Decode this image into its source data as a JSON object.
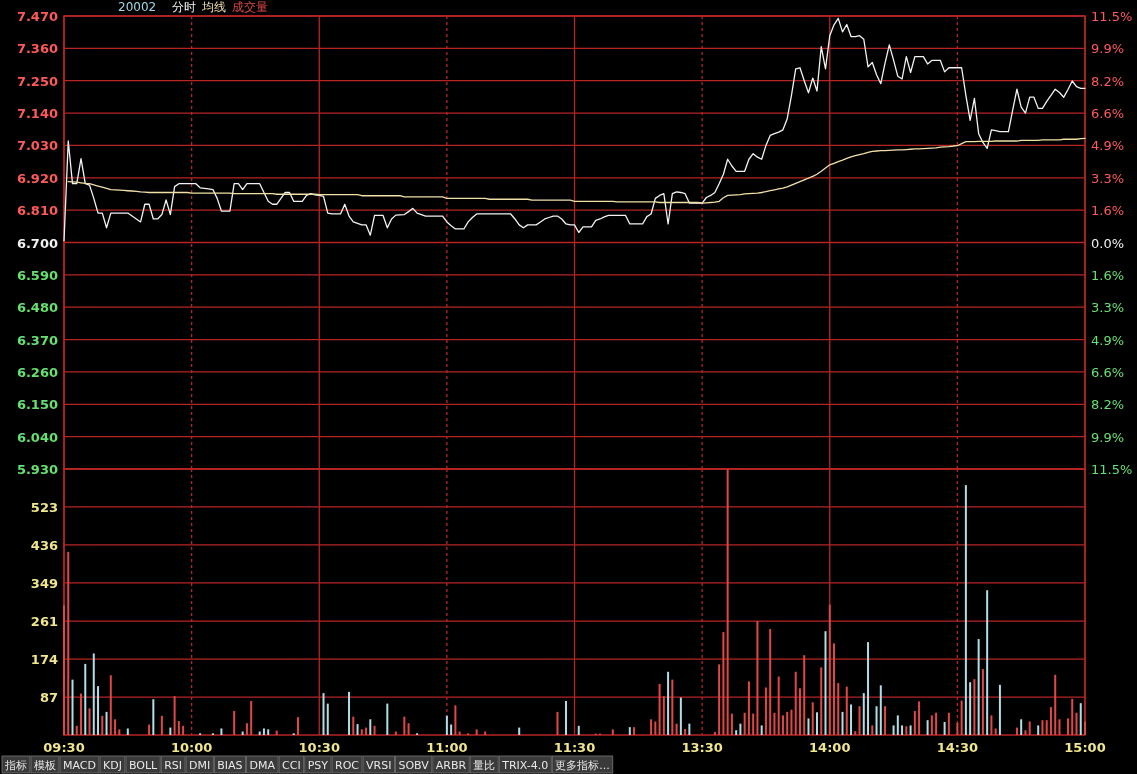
{
  "chart_data": [
    {
      "type": "line",
      "title": "20002",
      "legend": "top left",
      "grid": true,
      "tick_labels": "y",
      "categories": [
        null,
        null,
        null,
        null,
        null,
        null,
        null,
        null,
        null,
        null,
        null,
        null,
        null,
        null,
        null,
        null,
        null,
        null,
        null,
        null,
        null,
        null,
        null,
        null,
        null,
        null,
        null,
        null,
        null,
        null,
        null,
        null,
        null,
        null,
        null,
        null,
        null,
        null,
        null,
        null,
        null,
        null,
        null,
        null,
        null,
        null,
        null,
        null,
        null,
        null,
        null,
        null,
        null,
        null,
        null,
        null,
        null,
        null,
        null,
        null,
        null,
        null,
        null,
        null,
        null,
        null,
        null,
        null,
        null,
        null,
        null,
        null,
        null,
        null,
        null,
        null,
        null,
        null,
        null,
        null,
        null,
        null,
        null,
        null,
        null,
        null,
        null,
        null,
        null,
        null,
        null,
        null,
        null,
        null,
        null,
        null,
        null,
        null,
        null,
        null,
        null,
        null,
        null,
        null,
        null,
        null,
        null,
        null,
        null,
        null,
        null,
        null,
        null,
        null,
        null,
        null,
        null,
        null,
        null,
        null,
        null,
        null,
        null,
        null,
        null,
        null,
        null,
        null,
        null,
        null,
        null,
        null,
        null,
        null,
        null,
        null,
        null,
        null,
        null,
        null,
        null,
        null,
        null,
        null,
        null,
        null,
        null,
        null,
        null,
        null,
        null,
        null,
        null,
        null,
        null,
        null,
        null,
        null,
        null,
        null,
        null,
        null,
        null,
        null,
        null,
        null,
        null,
        null,
        null,
        null,
        null,
        null,
        null,
        null,
        null,
        null,
        null,
        null,
        null,
        null,
        null,
        null,
        null,
        null,
        null,
        null,
        null,
        null,
        null,
        null,
        null,
        null,
        null,
        null,
        null,
        null,
        null,
        null,
        null,
        null,
        null,
        null,
        null,
        null,
        null,
        null,
        null,
        null,
        null,
        null,
        null,
        null,
        null,
        null,
        null,
        null,
        null,
        null,
        null,
        null,
        null,
        null,
        null,
        null,
        null,
        null,
        null,
        null,
        null,
        null,
        null,
        null,
        null,
        null,
        null,
        null,
        null,
        null,
        null,
        null,
        null
      ],
      "ylim": [
        5.93,
        7.47
      ],
      "yticks": [
        {
          "value": 7.47,
          "label": "7.470"
        },
        {
          "value": 7.36,
          "label": "7.360"
        },
        {
          "value": 7.25,
          "label": "7.250"
        },
        {
          "value": 7.14,
          "label": "7.140"
        },
        {
          "value": 7.03,
          "label": "7.030"
        },
        {
          "value": 6.92,
          "label": "6.920"
        },
        {
          "value": 6.81,
          "label": "6.810"
        },
        {
          "value": 6.7,
          "label": "6.700"
        },
        {
          "value": 6.59,
          "label": "6.590"
        },
        {
          "value": 6.48,
          "label": "6.480"
        },
        {
          "value": 6.37,
          "label": "6.370"
        },
        {
          "value": 6.26,
          "label": "6.260"
        },
        {
          "value": 6.15,
          "label": "6.150"
        },
        {
          "value": 6.04,
          "label": "6.040"
        },
        {
          "value": 5.93,
          "label": "5.930"
        }
      ],
      "y2lim": [
        -11.49,
        11.49
      ],
      "y2ticks": [
        {
          "value": 11.49,
          "label": "11.5%"
        },
        {
          "value": 9.85,
          "label": "9.9%"
        },
        {
          "value": 8.21,
          "label": "8.2%"
        },
        {
          "value": 6.57,
          "label": "6.6%"
        },
        {
          "value": 4.93,
          "label": "4.9%"
        },
        {
          "value": 3.28,
          "label": "3.3%"
        },
        {
          "value": 1.64,
          "label": "1.6%"
        },
        {
          "value": 0,
          "label": "0.0%"
        },
        {
          "value": -1.64,
          "label": "1.6%"
        },
        {
          "value": -3.28,
          "label": "3.3%"
        },
        {
          "value": -4.93,
          "label": "4.9%"
        },
        {
          "value": -6.57,
          "label": "6.6%"
        },
        {
          "value": -8.21,
          "label": "8.2%"
        },
        {
          "value": -9.85,
          "label": "9.9%"
        },
        {
          "value": -11.49,
          "label": "11.5%"
        }
      ],
      "series": [
        {
          "name": "分时",
          "color": "#f2f2f2",
          "values": [
            6.706,
            7.045,
            6.9,
            6.9,
            6.985,
            6.9,
            6.895,
            6.85,
            6.8,
            6.8,
            6.75,
            6.8,
            6.8,
            6.8,
            6.8,
            6.8,
            6.79,
            6.78,
            6.77,
            6.83,
            6.83,
            6.78,
            6.78,
            6.795,
            6.845,
            6.795,
            6.89,
            6.9,
            6.9,
            6.9,
            6.9,
            6.9,
            6.886,
            6.884,
            6.882,
            6.88,
            6.85,
            6.807,
            6.807,
            6.807,
            6.9,
            6.9,
            6.88,
            6.9,
            6.9,
            6.9,
            6.9,
            6.87,
            6.84,
            6.83,
            6.83,
            6.85,
            6.87,
            6.87,
            6.84,
            6.84,
            6.84,
            6.86,
            6.866,
            6.862,
            6.86,
            6.857,
            6.8,
            6.797,
            6.797,
            6.797,
            6.83,
            6.79,
            6.77,
            6.765,
            6.76,
            6.76,
            6.725,
            6.792,
            6.792,
            6.792,
            6.75,
            6.78,
            6.793,
            6.794,
            6.795,
            6.805,
            6.816,
            6.8,
            6.795,
            6.79,
            6.79,
            6.79,
            6.79,
            6.79,
            6.77,
            6.757,
            6.746,
            6.746,
            6.746,
            6.77,
            6.785,
            6.797,
            6.797,
            6.797,
            6.797,
            6.797,
            6.797,
            6.797,
            6.797,
            6.797,
            6.78,
            6.76,
            6.75,
            6.76,
            6.76,
            6.76,
            6.77,
            6.78,
            6.785,
            6.79,
            6.79,
            6.78,
            6.763,
            6.76,
            6.76,
            6.734,
            6.753,
            6.753,
            6.753,
            6.775,
            6.78,
            6.787,
            6.792,
            6.792,
            6.792,
            6.792,
            6.792,
            6.763,
            6.763,
            6.763,
            6.763,
            6.788,
            6.797,
            6.85,
            6.86,
            6.866,
            6.763,
            6.866,
            6.872,
            6.87,
            6.866,
            6.834,
            6.834,
            6.834,
            6.834,
            6.853,
            6.86,
            6.87,
            6.9,
            6.932,
            6.983,
            6.96,
            6.942,
            6.942,
            6.942,
            6.983,
            7.002,
            6.99,
            6.983,
            7.03,
            7.064,
            7.07,
            7.075,
            7.083,
            7.121,
            7.2,
            7.29,
            7.294,
            7.25,
            7.209,
            7.259,
            7.215,
            7.366,
            7.29,
            7.403,
            7.44,
            7.462,
            7.416,
            7.441,
            7.4,
            7.4,
            7.403,
            7.391,
            7.297,
            7.312,
            7.27,
            7.24,
            7.31,
            7.372,
            7.32,
            7.265,
            7.256,
            7.332,
            7.278,
            7.332,
            7.332,
            7.332,
            7.307,
            7.319,
            7.319,
            7.319,
            7.28,
            7.294,
            7.294,
            7.294,
            7.294,
            7.2,
            7.115,
            7.19,
            7.07,
            7.04,
            7.02,
            7.083,
            7.08,
            7.077,
            7.077,
            7.077,
            7.15,
            7.221,
            7.16,
            7.14,
            7.194,
            7.194,
            7.156,
            7.156,
            7.18,
            7.2,
            7.221,
            7.21,
            7.194,
            7.22,
            7.249,
            7.23,
            7.224,
            7.224
          ]
        },
        {
          "name": "均线",
          "color": "#f0e0a8",
          "values": [
            null,
            6.907,
            6.906,
            6.905,
            6.903,
            6.901,
            6.9,
            6.896,
            6.892,
            6.888,
            6.884,
            6.88,
            6.879,
            6.878,
            6.877,
            6.876,
            6.875,
            6.874,
            6.872,
            6.871,
            6.87,
            6.87,
            6.87,
            6.87,
            6.87,
            6.87,
            6.87,
            6.87,
            6.87,
            6.87,
            6.868,
            6.868,
            6.868,
            6.868,
            6.868,
            6.868,
            6.868,
            6.868,
            6.868,
            6.868,
            6.866,
            6.866,
            6.866,
            6.866,
            6.866,
            6.866,
            6.866,
            6.866,
            6.866,
            6.866,
            6.864,
            6.864,
            6.864,
            6.864,
            6.864,
            6.864,
            6.864,
            6.864,
            6.864,
            6.864,
            6.863,
            6.863,
            6.863,
            6.863,
            6.863,
            6.863,
            6.863,
            6.863,
            6.863,
            6.863,
            6.859,
            6.859,
            6.859,
            6.859,
            6.859,
            6.859,
            6.859,
            6.859,
            6.859,
            6.859,
            6.855,
            6.855,
            6.855,
            6.855,
            6.855,
            6.855,
            6.855,
            6.855,
            6.855,
            6.855,
            6.85,
            6.85,
            6.85,
            6.85,
            6.85,
            6.85,
            6.85,
            6.85,
            6.85,
            6.85,
            6.847,
            6.847,
            6.847,
            6.847,
            6.847,
            6.847,
            6.847,
            6.847,
            6.847,
            6.847,
            6.844,
            6.844,
            6.844,
            6.844,
            6.844,
            6.844,
            6.844,
            6.844,
            6.844,
            6.844,
            6.84,
            6.84,
            6.84,
            6.84,
            6.84,
            6.84,
            6.84,
            6.84,
            6.84,
            6.84,
            6.838,
            6.838,
            6.838,
            6.838,
            6.838,
            6.838,
            6.838,
            6.838,
            6.838,
            6.838,
            6.836,
            6.836,
            6.836,
            6.836,
            6.836,
            6.836,
            6.836,
            6.836,
            6.836,
            6.836,
            6.834,
            6.835,
            6.836,
            6.837,
            6.84,
            6.852,
            6.86,
            6.861,
            6.862,
            6.863,
            6.865,
            6.866,
            6.867,
            6.868,
            6.87,
            6.873,
            6.876,
            6.879,
            6.882,
            6.885,
            6.889,
            6.895,
            6.901,
            6.907,
            6.913,
            6.919,
            6.925,
            6.932,
            6.942,
            6.953,
            6.964,
            6.969,
            6.975,
            6.98,
            6.986,
            6.991,
            6.995,
            6.999,
            7.002,
            7.006,
            7.01,
            7.011,
            7.012,
            7.012,
            7.013,
            7.014,
            7.015,
            7.015,
            7.016,
            7.017,
            7.018,
            7.018,
            7.019,
            7.02,
            7.021,
            7.022,
            7.024,
            7.025,
            7.026,
            7.028,
            7.029,
            7.036,
            7.043,
            7.043,
            7.043,
            7.044,
            7.044,
            7.044,
            7.044,
            7.045,
            7.045,
            7.045,
            7.045,
            7.045,
            7.045,
            7.047,
            7.047,
            7.047,
            7.047,
            7.047,
            7.049,
            7.049,
            7.049,
            7.049,
            7.049,
            7.051,
            7.051,
            7.051,
            7.051,
            7.053,
            7.054
          ]
        }
      ]
    },
    {
      "type": "bar",
      "grid": true,
      "legend": "top left",
      "categories": [
        "09:30",
        null,
        null,
        null,
        null,
        null,
        null,
        null,
        null,
        null,
        null,
        null,
        null,
        null,
        null,
        null,
        null,
        null,
        null,
        null,
        null,
        null,
        null,
        null,
        null,
        null,
        null,
        null,
        null,
        null,
        "10:00",
        null,
        null,
        null,
        null,
        null,
        null,
        null,
        null,
        null,
        null,
        null,
        null,
        null,
        null,
        null,
        null,
        null,
        null,
        null,
        null,
        null,
        null,
        null,
        null,
        null,
        null,
        null,
        null,
        null,
        "10:30",
        null,
        null,
        null,
        null,
        null,
        null,
        null,
        null,
        null,
        null,
        null,
        null,
        null,
        null,
        null,
        null,
        null,
        null,
        null,
        null,
        null,
        null,
        null,
        null,
        null,
        null,
        null,
        null,
        null,
        "11:00",
        null,
        null,
        null,
        null,
        null,
        null,
        null,
        null,
        null,
        null,
        null,
        null,
        null,
        null,
        null,
        null,
        null,
        null,
        null,
        null,
        null,
        null,
        null,
        null,
        null,
        null,
        null,
        null,
        null,
        "11:30",
        null,
        null,
        null,
        null,
        null,
        null,
        null,
        null,
        null,
        null,
        null,
        null,
        null,
        null,
        null,
        null,
        null,
        null,
        null,
        null,
        null,
        null,
        null,
        null,
        null,
        null,
        null,
        null,
        null,
        "13:30",
        null,
        null,
        null,
        null,
        null,
        null,
        null,
        null,
        null,
        null,
        null,
        null,
        null,
        null,
        null,
        null,
        null,
        null,
        null,
        null,
        null,
        null,
        null,
        null,
        null,
        null,
        null,
        null,
        null,
        "14:00",
        null,
        null,
        null,
        null,
        null,
        null,
        null,
        null,
        null,
        null,
        null,
        null,
        null,
        null,
        null,
        null,
        null,
        null,
        null,
        null,
        null,
        null,
        null,
        null,
        null,
        null,
        null,
        null,
        null,
        "14:30",
        null,
        null,
        null,
        null,
        null,
        null,
        null,
        null,
        null,
        null,
        null,
        null,
        null,
        null,
        null,
        null,
        null,
        null,
        null,
        null,
        null,
        null,
        null,
        null,
        null,
        null,
        null,
        null,
        null,
        "15:00"
      ],
      "ylim": [
        0,
        610
      ],
      "yticks": [
        87,
        174,
        261,
        349,
        436,
        523
      ],
      "annotations": [
        "指标",
        "模板",
        "MACD",
        "KDJ",
        "BOLL",
        "RSI",
        "DMI",
        "BIAS",
        "DMA",
        "CCI",
        "PSY",
        "ROC",
        "VRSI",
        "SOBV",
        "ARBR",
        "量比",
        "TRIX-4.0",
        "更多指标..."
      ],
      "series": [
        {
          "name": "成交量",
          "color": "#e04848",
          "values": [
            297,
            420,
            127,
            21,
            95,
            163,
            61,
            187,
            112,
            44,
            53,
            137,
            36,
            13,
            null,
            15,
            null,
            null,
            null,
            null,
            24,
            82,
            null,
            44,
            null,
            17,
            89,
            32,
            21,
            null,
            null,
            null,
            4,
            null,
            null,
            4,
            null,
            15,
            null,
            null,
            55,
            null,
            8,
            27,
            78,
            null,
            8,
            15,
            13,
            null,
            10,
            null,
            null,
            null,
            4,
            41,
            null,
            null,
            null,
            null,
            null,
            96,
            72,
            null,
            null,
            null,
            null,
            99,
            42,
            25,
            13,
            17,
            36,
            21,
            null,
            null,
            72,
            null,
            8,
            null,
            42,
            27,
            null,
            4,
            null,
            null,
            null,
            null,
            null,
            null,
            44,
            24,
            68,
            8,
            null,
            4,
            null,
            13,
            null,
            8,
            null,
            null,
            null,
            null,
            null,
            null,
            null,
            17,
            null,
            null,
            null,
            null,
            null,
            null,
            null,
            null,
            53,
            null,
            78,
            null,
            null,
            21,
            null,
            null,
            null,
            3,
            3,
            null,
            null,
            13,
            null,
            null,
            null,
            18,
            18,
            null,
            null,
            null,
            36,
            31,
            117,
            89,
            145,
            127,
            26,
            86,
            14,
            26,
            null,
            null,
            null,
            null,
            null,
            7,
            162,
            236,
            609,
            49,
            11,
            26,
            51,
            123,
            49,
            261,
            22,
            109,
            243,
            51,
            134,
            45,
            53,
            58,
            145,
            107,
            183,
            38,
            75,
            52,
            155,
            238,
            299,
            210,
            119,
            53,
            111,
            70,
            9,
            66,
            96,
            213,
            22,
            66,
            114,
            66,
            null,
            22,
            45,
            22,
            20,
            22,
            55,
            77,
            null,
            34,
            45,
            51,
            null,
            30,
            51,
            null,
            28,
            79,
            573,
            121,
            128,
            220,
            151,
            332,
            45,
            15,
            115,
            null,
            null,
            null,
            17,
            36,
            11,
            31,
            null,
            22,
            34,
            34,
            64,
            138,
            36,
            null,
            38,
            83,
            51,
            73,
            31
          ],
          "colors": [
            "#e04848",
            "#e04848",
            "#b0dde6",
            "#e04848",
            "#e04848",
            "#b0dde6",
            "#e04848",
            "#b0dde6",
            "#b0dde6",
            "#e04848",
            "#b0dde6",
            "#e04848",
            "#e04848",
            "#e04848",
            null,
            "#b0dde6",
            null,
            null,
            null,
            null,
            "#e04848",
            "#b0dde6",
            null,
            "#e04848",
            null,
            "#b0dde6",
            "#e04848",
            "#e04848",
            "#e04848",
            null,
            null,
            null,
            "#b0dde6",
            null,
            null,
            "#b0dde6",
            null,
            "#b0dde6",
            null,
            null,
            "#e04848",
            null,
            "#b0dde6",
            "#e04848",
            "#e04848",
            null,
            "#b0dde6",
            "#b0dde6",
            "#b0dde6",
            null,
            "#e04848",
            null,
            null,
            null,
            "#b0dde6",
            "#e04848",
            null,
            null,
            null,
            null,
            null,
            "#b0dde6",
            "#b0dde6",
            null,
            null,
            null,
            null,
            "#b0dde6",
            "#e04848",
            "#b0dde6",
            "#e04848",
            "#e04848",
            "#b0dde6",
            "#e04848",
            null,
            null,
            "#b0dde6",
            null,
            "#e04848",
            null,
            "#e04848",
            "#e04848",
            null,
            "#b0dde6",
            null,
            null,
            null,
            null,
            null,
            null,
            "#b0dde6",
            "#b0dde6",
            "#e04848",
            "#e04848",
            null,
            "#e04848",
            null,
            "#e04848",
            null,
            "#e04848",
            null,
            null,
            null,
            null,
            null,
            null,
            null,
            "#b0dde6",
            null,
            null,
            null,
            null,
            null,
            null,
            null,
            null,
            "#e04848",
            null,
            "#b0dde6",
            null,
            null,
            "#b0dde6",
            null,
            null,
            null,
            "#e04848",
            "#e04848",
            null,
            null,
            "#e04848",
            null,
            null,
            null,
            "#b0dde6",
            "#e04848",
            null,
            null,
            null,
            "#e04848",
            "#e04848",
            "#e04848",
            "#e04848",
            "#b0dde6",
            "#e04848",
            "#e04848",
            "#b0dde6",
            "#e04848",
            "#b0dde6",
            null,
            null,
            null,
            null,
            null,
            "#e04848",
            "#e04848",
            "#e04848",
            "#e04848",
            "#e04848",
            "#b0dde6",
            "#b0dde6",
            "#e04848",
            "#e04848",
            "#e04848",
            "#e04848",
            "#b0dde6",
            "#e04848",
            "#e04848",
            "#e04848",
            "#e04848",
            "#e04848",
            "#e04848",
            "#e04848",
            "#e04848",
            "#e04848",
            "#e04848",
            "#b0dde6",
            "#e04848",
            "#b0dde6",
            "#e04848",
            "#b0dde6",
            "#e04848",
            "#e04848",
            "#e04848",
            "#b0dde6",
            "#e04848",
            "#b0dde6",
            "#e04848",
            "#e04848",
            "#b0dde6",
            "#b0dde6",
            "#e04848",
            "#b0dde6",
            "#b0dde6",
            "#e04848",
            null,
            "#b0dde6",
            "#b0dde6",
            "#b0dde6",
            "#e04848",
            "#b0dde6",
            "#e04848",
            "#e04848",
            null,
            "#b0dde6",
            "#e04848",
            "#e04848",
            null,
            "#b0dde6",
            "#e04848",
            null,
            "#e04848",
            "#e04848",
            "#b0dde6",
            "#b0dde6",
            "#e04848",
            "#b0dde6",
            "#e04848",
            "#b0dde6",
            "#e04848",
            "#e04848",
            "#b0dde6",
            null,
            null,
            null,
            "#e04848",
            "#b0dde6",
            "#e04848",
            "#e04848",
            null,
            "#b0dde6",
            "#e04848",
            "#e04848",
            "#e04848",
            "#e04848",
            "#e04848",
            null,
            "#e04848",
            "#e04848",
            "#e04848",
            "#b0dde6",
            "#e04848"
          ]
        }
      ]
    }
  ]
}
